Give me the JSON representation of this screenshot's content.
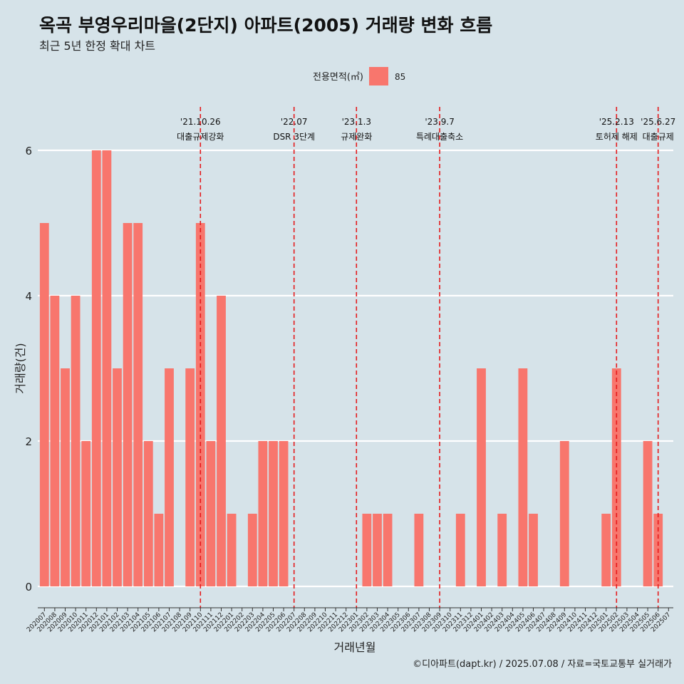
{
  "colors": {
    "background": "#d6e3e9",
    "bar": "#f8766d",
    "grid": "#ffffff",
    "event_line": "#e41a1c",
    "text": "#222222"
  },
  "chart_data": {
    "type": "bar",
    "title": "옥곡 부영우리마을(2단지) 아파트(2005) 거래량 변화 흐름",
    "subtitle": "최근 5년 한정 확대 차트",
    "xlabel": "거래년월",
    "ylabel": "거래량(건)",
    "ylim": [
      0,
      6
    ],
    "yticks": [
      0,
      2,
      4,
      6
    ],
    "grid": true,
    "legend": {
      "title": "전용면적(㎡)",
      "position": "top",
      "entries": [
        "85"
      ]
    },
    "caption": "©디아파트(dapt.kr) / 2025.07.08 / 자료=국토교통부 실거래가",
    "categories": [
      "202007",
      "202008",
      "202009",
      "202010",
      "202011",
      "202012",
      "202101",
      "202102",
      "202103",
      "202104",
      "202105",
      "202106",
      "202107",
      "202108",
      "202109",
      "202110",
      "202111",
      "202112",
      "202201",
      "202202",
      "202203",
      "202204",
      "202205",
      "202206",
      "202207",
      "202208",
      "202209",
      "202210",
      "202211",
      "202212",
      "202301",
      "202302",
      "202303",
      "202304",
      "202305",
      "202306",
      "202307",
      "202308",
      "202309",
      "202310",
      "202311",
      "202312",
      "202401",
      "202402",
      "202403",
      "202404",
      "202405",
      "202406",
      "202407",
      "202408",
      "202409",
      "202410",
      "202411",
      "202412",
      "202501",
      "202502",
      "202503",
      "202504",
      "202505",
      "202506",
      "202507"
    ],
    "series": [
      {
        "name": "85",
        "values": [
          5,
          4,
          3,
          4,
          2,
          6,
          6,
          3,
          5,
          5,
          2,
          1,
          3,
          0,
          3,
          5,
          2,
          4,
          1,
          0,
          1,
          2,
          2,
          2,
          0,
          0,
          0,
          0,
          0,
          0,
          0,
          1,
          1,
          1,
          0,
          0,
          1,
          0,
          0,
          0,
          1,
          0,
          3,
          0,
          1,
          0,
          3,
          1,
          0,
          0,
          2,
          0,
          0,
          0,
          1,
          3,
          0,
          0,
          2,
          1,
          0
        ]
      }
    ],
    "events": [
      {
        "date": "'21.10.26",
        "label": "대출규제강화",
        "category": "202110"
      },
      {
        "date": "'22.07",
        "label": "DSR 3단계",
        "category": "202207"
      },
      {
        "date": "'23.1.3",
        "label": "규제완화",
        "category": "202301"
      },
      {
        "date": "'23.9.7",
        "label": "특례대출축소",
        "category": "202309"
      },
      {
        "date": "'25.2.13",
        "label": "토허제 해제",
        "category": "202502"
      },
      {
        "date": "'25.6.27",
        "label": "대출규제",
        "category": "202506"
      }
    ]
  }
}
